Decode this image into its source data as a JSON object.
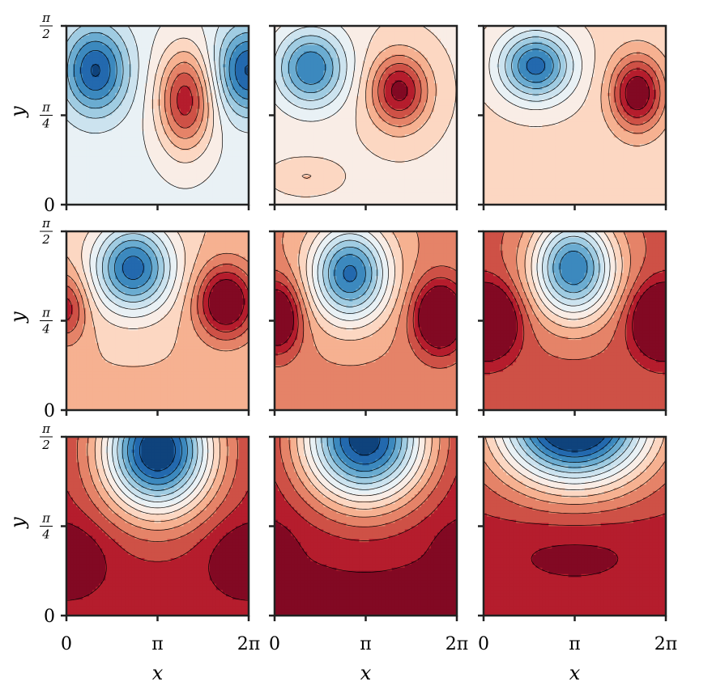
{
  "chart_data": {
    "type": "contour",
    "layout": {
      "rows": 3,
      "cols": 3
    },
    "colormap": "RdBu_r",
    "xlabel": "x",
    "ylabel": "y",
    "xlim": [
      0,
      6.2832
    ],
    "ylim": [
      0,
      1.5708
    ],
    "xticks": [
      0,
      3.1416,
      6.2832
    ],
    "xtick_labels": [
      "0",
      "π",
      "2π"
    ],
    "yticks": [
      0,
      0.7854,
      1.5708
    ],
    "ytick_labels": [
      "0",
      "π/4",
      "π/2"
    ],
    "contour_levels": 14,
    "panels": [
      {
        "row": 0,
        "col": 0,
        "cells": [
          {
            "x": 1.0,
            "y": 1.18,
            "v": -1.0,
            "sx": 1.1,
            "sy": 0.38
          },
          {
            "x": 4.1,
            "y": 0.92,
            "v": 1.0,
            "sx": 0.95,
            "sy": 0.45
          },
          {
            "x": 6.28,
            "y": 1.18,
            "v": -1.0,
            "sx": 1.1,
            "sy": 0.38
          }
        ],
        "base": 0.15,
        "vmin": -1.0,
        "vmax": 1.4
      },
      {
        "row": 0,
        "col": 1,
        "cells": [
          {
            "x": 1.25,
            "y": 1.2,
            "v": -1.0,
            "sx": 1.2,
            "sy": 0.34
          },
          {
            "x": 4.3,
            "y": 1.0,
            "v": 0.95,
            "sx": 1.0,
            "sy": 0.32
          },
          {
            "x": 1.1,
            "y": 0.25,
            "v": 0.2,
            "sx": 0.9,
            "sy": 0.12
          }
        ],
        "base": 0.35,
        "vmin": -1.0,
        "vmax": 1.4
      },
      {
        "row": 0,
        "col": 2,
        "cells": [
          {
            "x": 1.8,
            "y": 1.22,
            "v": -1.15,
            "sx": 1.25,
            "sy": 0.3
          },
          {
            "x": 5.3,
            "y": 0.98,
            "v": 1.0,
            "sx": 0.9,
            "sy": 0.32
          },
          {
            "x": 1.8,
            "y": 0.28,
            "v": 0.12,
            "sx": 0.9,
            "sy": 0.12
          }
        ],
        "base": 0.42,
        "vmin": -1.0,
        "vmax": 1.4
      },
      {
        "row": 1,
        "col": 0,
        "cells": [
          {
            "x": 2.3,
            "y": 1.25,
            "v": -1.3,
            "sx": 1.35,
            "sy": 0.38
          },
          {
            "x": 5.5,
            "y": 0.95,
            "v": 1.0,
            "sx": 1.0,
            "sy": 0.32
          },
          {
            "x": 0.0,
            "y": 0.9,
            "v": 0.6,
            "sx": 0.7,
            "sy": 0.3
          }
        ],
        "base": 0.55,
        "vmin": -1.0,
        "vmax": 1.4
      },
      {
        "row": 1,
        "col": 1,
        "cells": [
          {
            "x": 2.6,
            "y": 1.2,
            "v": -1.45,
            "sx": 1.35,
            "sy": 0.42
          },
          {
            "x": 5.7,
            "y": 0.82,
            "v": 1.0,
            "sx": 0.9,
            "sy": 0.32
          },
          {
            "x": 0.1,
            "y": 0.82,
            "v": 0.9,
            "sx": 0.8,
            "sy": 0.32
          }
        ],
        "base": 0.75,
        "vmin": -1.0,
        "vmax": 1.4
      },
      {
        "row": 1,
        "col": 2,
        "cells": [
          {
            "x": 3.1,
            "y": 1.25,
            "v": -1.6,
            "sx": 1.45,
            "sy": 0.45
          },
          {
            "x": 6.2,
            "y": 0.78,
            "v": 1.1,
            "sx": 1.0,
            "sy": 0.3
          },
          {
            "x": 0.1,
            "y": 0.78,
            "v": 1.1,
            "sx": 1.0,
            "sy": 0.3
          }
        ],
        "base": 0.95,
        "vmin": -1.0,
        "vmax": 1.4
      },
      {
        "row": 2,
        "col": 0,
        "cells": [
          {
            "x": 3.14,
            "y": 1.45,
            "v": -2.2,
            "sx": 1.9,
            "sy": 0.55
          },
          {
            "x": 6.28,
            "y": 0.5,
            "v": 0.35,
            "sx": 1.3,
            "sy": 0.3
          },
          {
            "x": 0.0,
            "y": 0.5,
            "v": 0.35,
            "sx": 1.3,
            "sy": 0.3
          }
        ],
        "base": 1.15,
        "vmin": -1.0,
        "vmax": 1.4
      },
      {
        "row": 2,
        "col": 1,
        "cells": [
          {
            "x": 3.1,
            "y": 1.55,
            "v": -2.5,
            "sx": 2.2,
            "sy": 0.58
          },
          {
            "x": 0.0,
            "y": 0.55,
            "v": 0.25,
            "sx": 0.6,
            "sy": 0.2
          },
          {
            "x": 6.28,
            "y": 0.55,
            "v": 0.25,
            "sx": 0.6,
            "sy": 0.2
          }
        ],
        "base": 1.25,
        "vmin": -1.3,
        "vmax": 1.4
      },
      {
        "row": 2,
        "col": 2,
        "cells": [
          {
            "x": 3.14,
            "y": 1.7,
            "v": -3.2,
            "sx": 2.6,
            "sy": 0.55
          },
          {
            "x": 3.14,
            "y": 0.55,
            "v": 0.25,
            "sx": 3.0,
            "sy": 0.35
          }
        ],
        "base": 1.2,
        "vmin": -1.6,
        "vmax": 1.6
      }
    ]
  }
}
